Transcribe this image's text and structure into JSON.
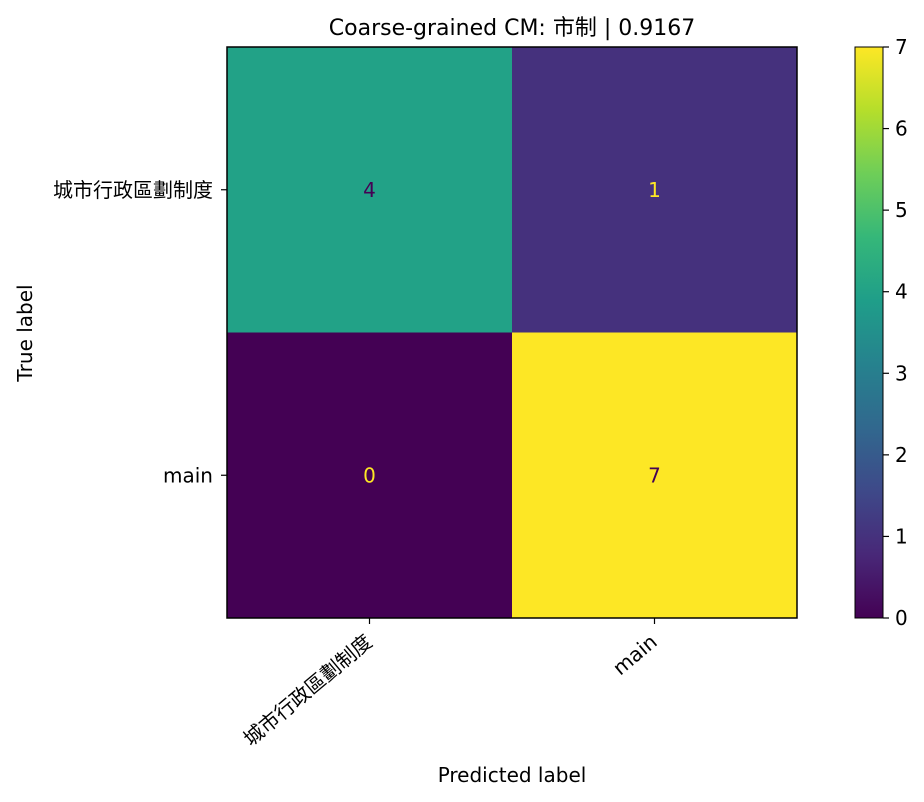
{
  "chart_data": {
    "type": "heatmap",
    "title": "Coarse-grained CM: 市制 | 0.9167",
    "xlabel": "Predicted label",
    "ylabel": "True label",
    "x_categories": [
      "城市行政區劃制度",
      "main"
    ],
    "y_categories": [
      "城市行政區劃制度",
      "main"
    ],
    "matrix": [
      [
        4,
        1
      ],
      [
        0,
        7
      ]
    ],
    "colormap": "viridis",
    "colorbar": {
      "range": [
        0,
        7
      ],
      "ticks": [
        "0",
        "1",
        "2",
        "3",
        "4",
        "5",
        "6",
        "7"
      ]
    },
    "grid": false,
    "legend": "colorbar-right"
  },
  "colors": {
    "text_on_dark": "#fde725",
    "text_on_light": "#440154"
  }
}
